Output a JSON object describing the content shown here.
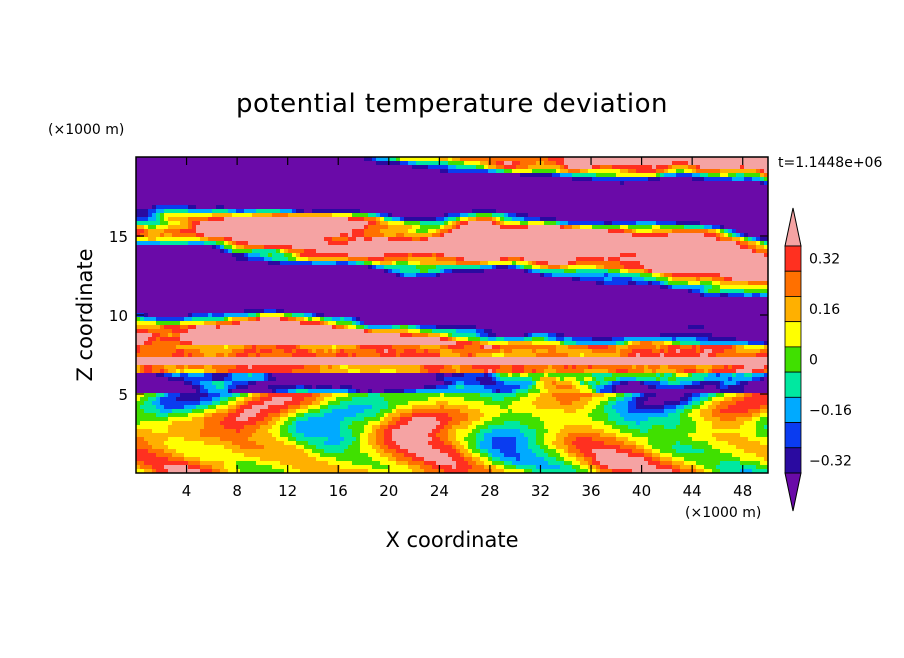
{
  "chart_data": {
    "type": "heatmap",
    "title": "potential temperature deviation",
    "xlabel": "X coordinate",
    "ylabel": "Z coordinate",
    "x_unit": "(×1000 m)",
    "y_unit": "(×1000 m)",
    "time_label": "t=1.1448e+06",
    "xlim": [
      0,
      50
    ],
    "ylim": [
      0,
      20
    ],
    "x_ticks": [
      "4",
      "8",
      "12",
      "16",
      "20",
      "24",
      "28",
      "32",
      "36",
      "40",
      "44",
      "48"
    ],
    "y_ticks": [
      "5",
      "10",
      "15"
    ],
    "grid": false,
    "legend": "colorbar-right",
    "colorbar": {
      "levels": [
        -0.4,
        -0.32,
        -0.24,
        -0.16,
        -0.08,
        0,
        0.08,
        0.16,
        0.24,
        0.32,
        0.4
      ],
      "tick_labels": [
        "0.32",
        "0.16",
        "0",
        "−0.16",
        "−0.32"
      ],
      "colors": [
        "#6a0aa8",
        "#2a0aa0",
        "#0a3cf0",
        "#00aaff",
        "#00e8a0",
        "#40e000",
        "#ffff00",
        "#ffb000",
        "#ff7000",
        "#ff3020",
        "#f5a3a3"
      ],
      "extend": "both"
    },
    "regions": [
      {
        "level": "high",
        "z_range": [
          14,
          20
        ],
        "note": "banded pink/purple layers"
      },
      {
        "level": "high",
        "z_range": [
          6.5,
          8
        ],
        "note": "warm stable band"
      },
      {
        "level": "mixed",
        "z_range": [
          0,
          6
        ],
        "note": "convective eddies"
      }
    ]
  }
}
